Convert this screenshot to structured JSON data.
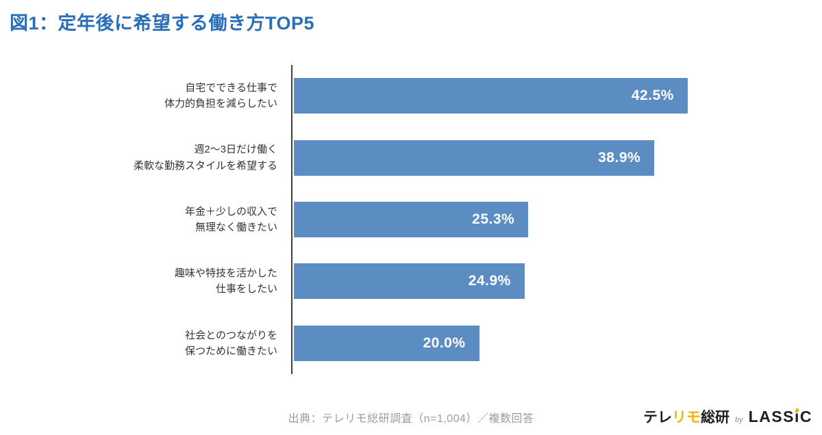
{
  "title": "図1：定年後に希望する働き方TOP5",
  "chart_data": {
    "type": "bar",
    "orientation": "horizontal",
    "categories": [
      "自宅でできる仕事で\n体力的負担を減らしたい",
      "週2〜3日だけ働く\n柔軟な勤務スタイルを希望する",
      "年金＋少しの収入で\n無理なく働きたい",
      "趣味や特技を活かした\n仕事をしたい",
      "社会とのつながりを\n保つために働きたい"
    ],
    "values": [
      42.5,
      38.9,
      25.3,
      24.9,
      20.0
    ],
    "value_labels": [
      "42.5%",
      "38.9%",
      "25.3%",
      "24.9%",
      "20.0%"
    ],
    "xlim": [
      0,
      57
    ],
    "bar_color": "#5b8dc3",
    "axis_color": "#3f3f3f",
    "grid": false,
    "legend": "none",
    "value_label_position": "inside-end"
  },
  "footer": {
    "source": "出典：テレリモ総研調査（n=1,004）／複数回答"
  },
  "logo": {
    "telerimo_pre": "テレ",
    "telerimo_accent": "リモ",
    "telerimo_post": "総研",
    "by": "by",
    "lassic_pre": "LASS",
    "lassic_i": "i",
    "lassic_post": "C",
    "accent_color": "#f2b705"
  }
}
